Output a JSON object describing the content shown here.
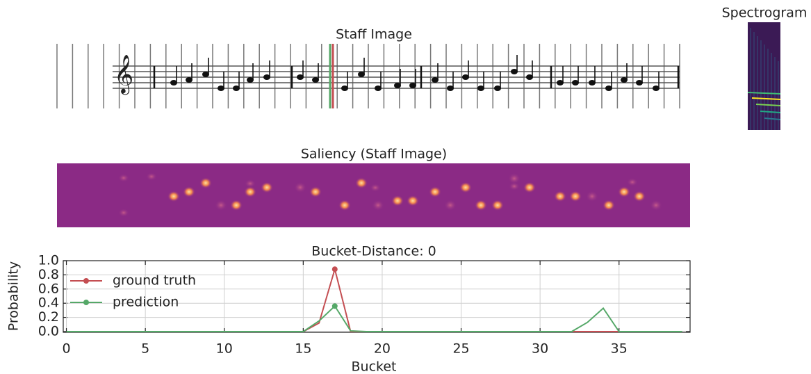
{
  "staff_image": {
    "title": "Staff Image"
  },
  "saliency": {
    "title": "Saliency (Staff Image)"
  },
  "spectrogram": {
    "title": "Spectrogram"
  },
  "chart_data": {
    "type": "line",
    "title": "Bucket-Distance: 0",
    "x_label": "Bucket",
    "y_label": "Probability",
    "x": [
      0,
      1,
      2,
      3,
      4,
      5,
      6,
      7,
      8,
      9,
      10,
      11,
      12,
      13,
      14,
      15,
      16,
      17,
      18,
      19,
      20,
      21,
      22,
      23,
      24,
      25,
      26,
      27,
      28,
      29,
      30,
      31,
      32,
      33,
      34,
      35,
      36,
      37,
      38,
      39
    ],
    "series": [
      {
        "name": "ground truth",
        "color": "#c44e52",
        "values": [
          0,
          0,
          0,
          0,
          0,
          0,
          0,
          0,
          0,
          0,
          0,
          0,
          0,
          0,
          0,
          0,
          0.12,
          0.88,
          0,
          0,
          0,
          0,
          0,
          0,
          0,
          0,
          0,
          0,
          0,
          0,
          0,
          0,
          0,
          0,
          0,
          0,
          0,
          0,
          0,
          0
        ]
      },
      {
        "name": "prediction",
        "color": "#55a868",
        "values": [
          0,
          0,
          0,
          0,
          0,
          0,
          0,
          0,
          0,
          0,
          0,
          0,
          0,
          0,
          0,
          0,
          0.15,
          0.36,
          0.01,
          0,
          0,
          0,
          0,
          0,
          0,
          0,
          0,
          0,
          0,
          0,
          0,
          0,
          0,
          0.13,
          0.33,
          0,
          0,
          0,
          0,
          0
        ]
      }
    ],
    "xlim": [
      -0.2,
      39.5
    ],
    "xticks": [
      0,
      5,
      10,
      15,
      20,
      25,
      30,
      35
    ],
    "ylim": [
      -0.01,
      1.0
    ],
    "yticks": [
      {
        "value": 0,
        "label": "0.0"
      },
      {
        "value": 0.2,
        "label": "0.2"
      },
      {
        "value": 0.4,
        "label": "0.4"
      },
      {
        "value": 0.6,
        "label": "0.6"
      },
      {
        "value": 0.8,
        "label": "0.8"
      },
      {
        "value": 1.0,
        "label": "1.0"
      }
    ],
    "grid": true,
    "legend": "upper left"
  }
}
